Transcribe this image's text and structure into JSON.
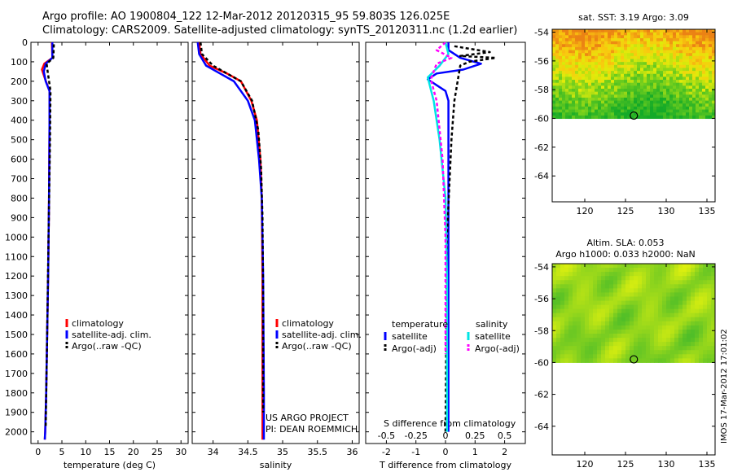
{
  "header": {
    "line1": "Argo profile: AO 1900804_122 12-Mar-2012 20120315_95 59.803S 126.025E",
    "line2": "Climatology: CARS2009. Satellite-adjusted climatology: synTS_20120311.nc (1.2d earlier)"
  },
  "stamp": "IMOS 17-Mar-2012 17:01:02",
  "project": {
    "line1": "US ARGO PROJECT",
    "line2": "PI: DEAN ROEMMICH"
  },
  "colors": {
    "climatology": "#ff0000",
    "satellite": "#0000ff",
    "argo": "#000000",
    "sal_satellite": "#00e5e5",
    "sal_argo": "#ff00ff"
  },
  "chart_data": [
    {
      "type": "line",
      "id": "temperature",
      "xlabel": "temperature (deg C)",
      "xlim": [
        -1.5,
        31.5
      ],
      "ylim": [
        2060,
        0
      ],
      "xticks": [
        0,
        5,
        10,
        15,
        20,
        25,
        30
      ],
      "yticks": [
        0,
        100,
        200,
        300,
        400,
        500,
        600,
        700,
        800,
        900,
        1000,
        1100,
        1200,
        1300,
        1400,
        1500,
        1600,
        1700,
        1800,
        1900,
        2000
      ],
      "legend": [
        "climatology",
        "satellite-adj. clim.",
        "Argo(..raw -QC)"
      ],
      "series": [
        {
          "name": "climatology",
          "color": "#ff0000",
          "dash": "",
          "x": [
            2.9,
            3.0,
            1.3,
            0.8,
            1.5,
            2.4,
            2.4,
            2.3,
            2.1,
            1.9,
            1.7,
            1.5,
            1.4
          ],
          "y": [
            0,
            80,
            110,
            140,
            190,
            250,
            400,
            800,
            1200,
            1500,
            1800,
            2000,
            2040
          ]
        },
        {
          "name": "satellite-adj. clim.",
          "color": "#0000ff",
          "dash": "",
          "x": [
            3.0,
            3.0,
            1.6,
            1.2,
            1.6,
            2.4,
            2.4,
            2.3,
            2.1,
            1.9,
            1.7,
            1.5,
            1.4
          ],
          "y": [
            0,
            80,
            110,
            150,
            200,
            250,
            400,
            800,
            1200,
            1500,
            1800,
            2000,
            2040
          ]
        },
        {
          "name": "Argo(..raw -QC)",
          "color": "#000000",
          "dash": "4,3",
          "x": [
            3.3,
            3.2,
            1.8,
            2.0,
            2.6,
            2.5,
            2.2,
            1.9,
            1.6
          ],
          "y": [
            10,
            80,
            110,
            150,
            250,
            500,
            1000,
            1500,
            1980
          ]
        }
      ]
    },
    {
      "type": "line",
      "id": "salinity",
      "xlabel": "salinity",
      "xlim": [
        33.7,
        36.1
      ],
      "ylim": [
        2060,
        0
      ],
      "xticks": [
        34,
        34.5,
        35,
        35.5,
        36
      ],
      "legend": [
        "climatology",
        "satellite-adj. clim.",
        "Argo(..raw -QC)"
      ],
      "series": [
        {
          "name": "climatology",
          "color": "#ff0000",
          "dash": "",
          "x": [
            33.8,
            33.82,
            33.95,
            34.2,
            34.4,
            34.55,
            34.63,
            34.68,
            34.7,
            34.71,
            34.71,
            34.71
          ],
          "y": [
            0,
            60,
            120,
            160,
            200,
            300,
            400,
            600,
            800,
            1200,
            1800,
            2040
          ]
        },
        {
          "name": "satellite-adj. clim.",
          "color": "#0000ff",
          "dash": "",
          "x": [
            33.78,
            33.8,
            33.9,
            34.1,
            34.3,
            34.5,
            34.6,
            34.66,
            34.7,
            34.72,
            34.73,
            34.73
          ],
          "y": [
            0,
            60,
            120,
            160,
            200,
            300,
            400,
            600,
            800,
            1200,
            1800,
            2040
          ]
        },
        {
          "name": "Argo(..raw -QC)",
          "color": "#000000",
          "dash": "4,3",
          "x": [
            33.82,
            33.84,
            34.0,
            34.2,
            34.4,
            34.56,
            34.65,
            34.69,
            34.71,
            34.72,
            34.72
          ],
          "y": [
            0,
            60,
            120,
            160,
            200,
            300,
            450,
            650,
            900,
            1300,
            1900
          ]
        }
      ]
    },
    {
      "type": "line",
      "id": "difference",
      "xlabel": "T difference from climatology",
      "top_label": "S difference from climatology",
      "xlim": [
        -2.7,
        2.7
      ],
      "ylim": [
        2060,
        0
      ],
      "xticks": [
        -2,
        -1,
        0,
        1,
        2
      ],
      "top_ticks": [
        "-0.5",
        "-0.25",
        "0",
        "0.25",
        "0.5"
      ],
      "legend_titles": [
        "temperature",
        "salinity"
      ],
      "legend": [
        "satellite",
        "Argo(-adj)",
        "satellite",
        "Argo(-adj)"
      ],
      "series": [
        {
          "name": "satellite",
          "group": "temperature",
          "color": "#0000ff",
          "dash": "",
          "x": [
            0.1,
            0.1,
            0.5,
            1.2,
            0.6,
            -0.3,
            -0.6,
            0.0,
            0.1,
            0.1,
            0.1,
            0.1,
            0.1
          ],
          "y": [
            0,
            40,
            80,
            110,
            140,
            160,
            190,
            250,
            300,
            500,
            1000,
            1500,
            2000
          ]
        },
        {
          "name": "Argo(-adj)",
          "group": "temperature",
          "color": "#000000",
          "dash": "4,3",
          "x": [
            0.3,
            1.5,
            0.5,
            1.7,
            0.8,
            0.5,
            0.3,
            0.2,
            0.05,
            0.0
          ],
          "y": [
            20,
            50,
            70,
            80,
            100,
            120,
            300,
            500,
            1000,
            2000
          ]
        },
        {
          "name": "satellite",
          "group": "salinity",
          "color": "#00e5e5",
          "dash": "",
          "x": [
            0.0,
            0.1,
            -0.2,
            -0.6,
            -0.4,
            -0.2,
            0.0,
            0.05,
            0.05
          ],
          "y": [
            0,
            60,
            120,
            180,
            300,
            500,
            800,
            1200,
            2000
          ]
        },
        {
          "name": "Argo(-adj)",
          "group": "salinity",
          "color": "#ff00ff",
          "dash": "4,3",
          "x": [
            0.0,
            -0.3,
            0.2,
            -0.3,
            -0.5,
            -0.3,
            -0.1,
            0.0,
            0.0
          ],
          "y": [
            0,
            40,
            80,
            110,
            190,
            300,
            600,
            1000,
            1600
          ]
        }
      ]
    },
    {
      "type": "heatmap",
      "id": "sst_map",
      "title": "sat. SST: 3.19 Argo: 3.09",
      "xlim": [
        116,
        136
      ],
      "ylim": [
        -65.8,
        -53.8
      ],
      "xticks": [
        120,
        125,
        130,
        135
      ],
      "yticks": [
        -54,
        -56,
        -58,
        -60,
        -62,
        -64
      ],
      "data_south_limit": -60,
      "marker": {
        "x": 126.025,
        "y": -59.803
      }
    },
    {
      "type": "heatmap",
      "id": "sla_map",
      "title": "Altim. SLA: 0.053",
      "subtitle": "Argo h1000: 0.033 h2000: NaN",
      "xlim": [
        116,
        136
      ],
      "ylim": [
        -65.8,
        -53.8
      ],
      "xticks": [
        120,
        125,
        130,
        135
      ],
      "yticks": [
        -54,
        -56,
        -58,
        -60,
        -62,
        -64
      ],
      "data_south_limit": -60,
      "marker": {
        "x": 126.025,
        "y": -59.803
      }
    }
  ]
}
